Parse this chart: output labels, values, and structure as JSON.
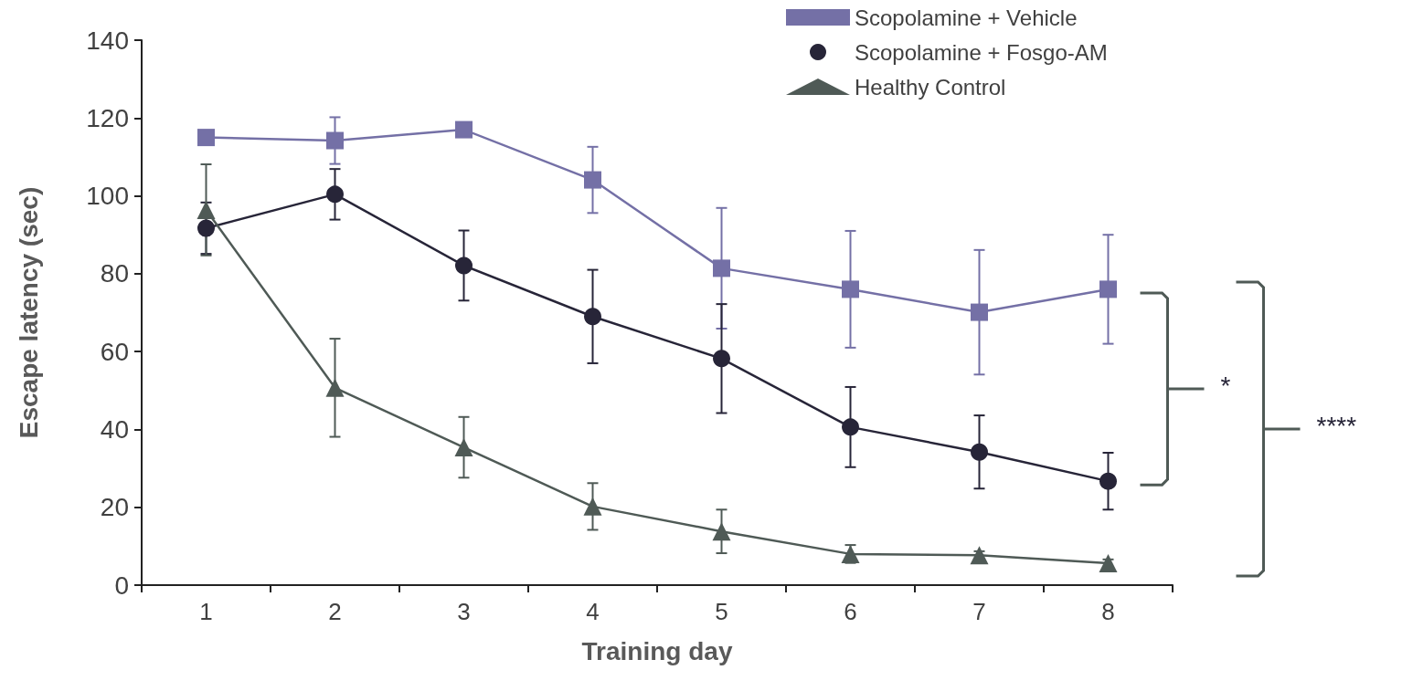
{
  "chart_data": {
    "type": "line",
    "xlabel": "Training day",
    "ylabel": "Escape latency (sec)",
    "categories": [
      "1",
      "2",
      "3",
      "4",
      "5",
      "6",
      "7",
      "8"
    ],
    "ylim": [
      0,
      140
    ],
    "yticks": [
      0,
      20,
      40,
      60,
      80,
      100,
      120,
      140
    ],
    "grid": false,
    "legend": "top right",
    "line_style": "solid",
    "annotations": [
      "*",
      "****"
    ],
    "series": [
      {
        "name": "Scopolamine + Vehicle",
        "color": "#7470a6",
        "marker": "square",
        "values": [
          115,
          114.2,
          117,
          104.1,
          81.4,
          76,
          70.1,
          76
        ],
        "errors": [
          null,
          6,
          null,
          8.5,
          15.5,
          15,
          16,
          14
        ]
      },
      {
        "name": "Scopolamine + Fosgo-AM",
        "color": "#272538",
        "marker": "circle",
        "values": [
          91.7,
          100.4,
          82.1,
          69,
          58.2,
          40.6,
          34.2,
          26.7
        ],
        "errors": [
          6.6,
          6.5,
          9,
          12,
          14,
          10.3,
          9.4,
          7.3
        ]
      },
      {
        "name": "Healthy Control",
        "color": "#4f5a56",
        "marker": "triangle",
        "values": [
          96.4,
          50.7,
          35.4,
          20.2,
          13.8,
          8,
          7.7,
          5.6
        ],
        "errors": [
          11.7,
          12.6,
          7.8,
          6,
          5.6,
          2.3,
          1,
          1
        ]
      }
    ]
  }
}
